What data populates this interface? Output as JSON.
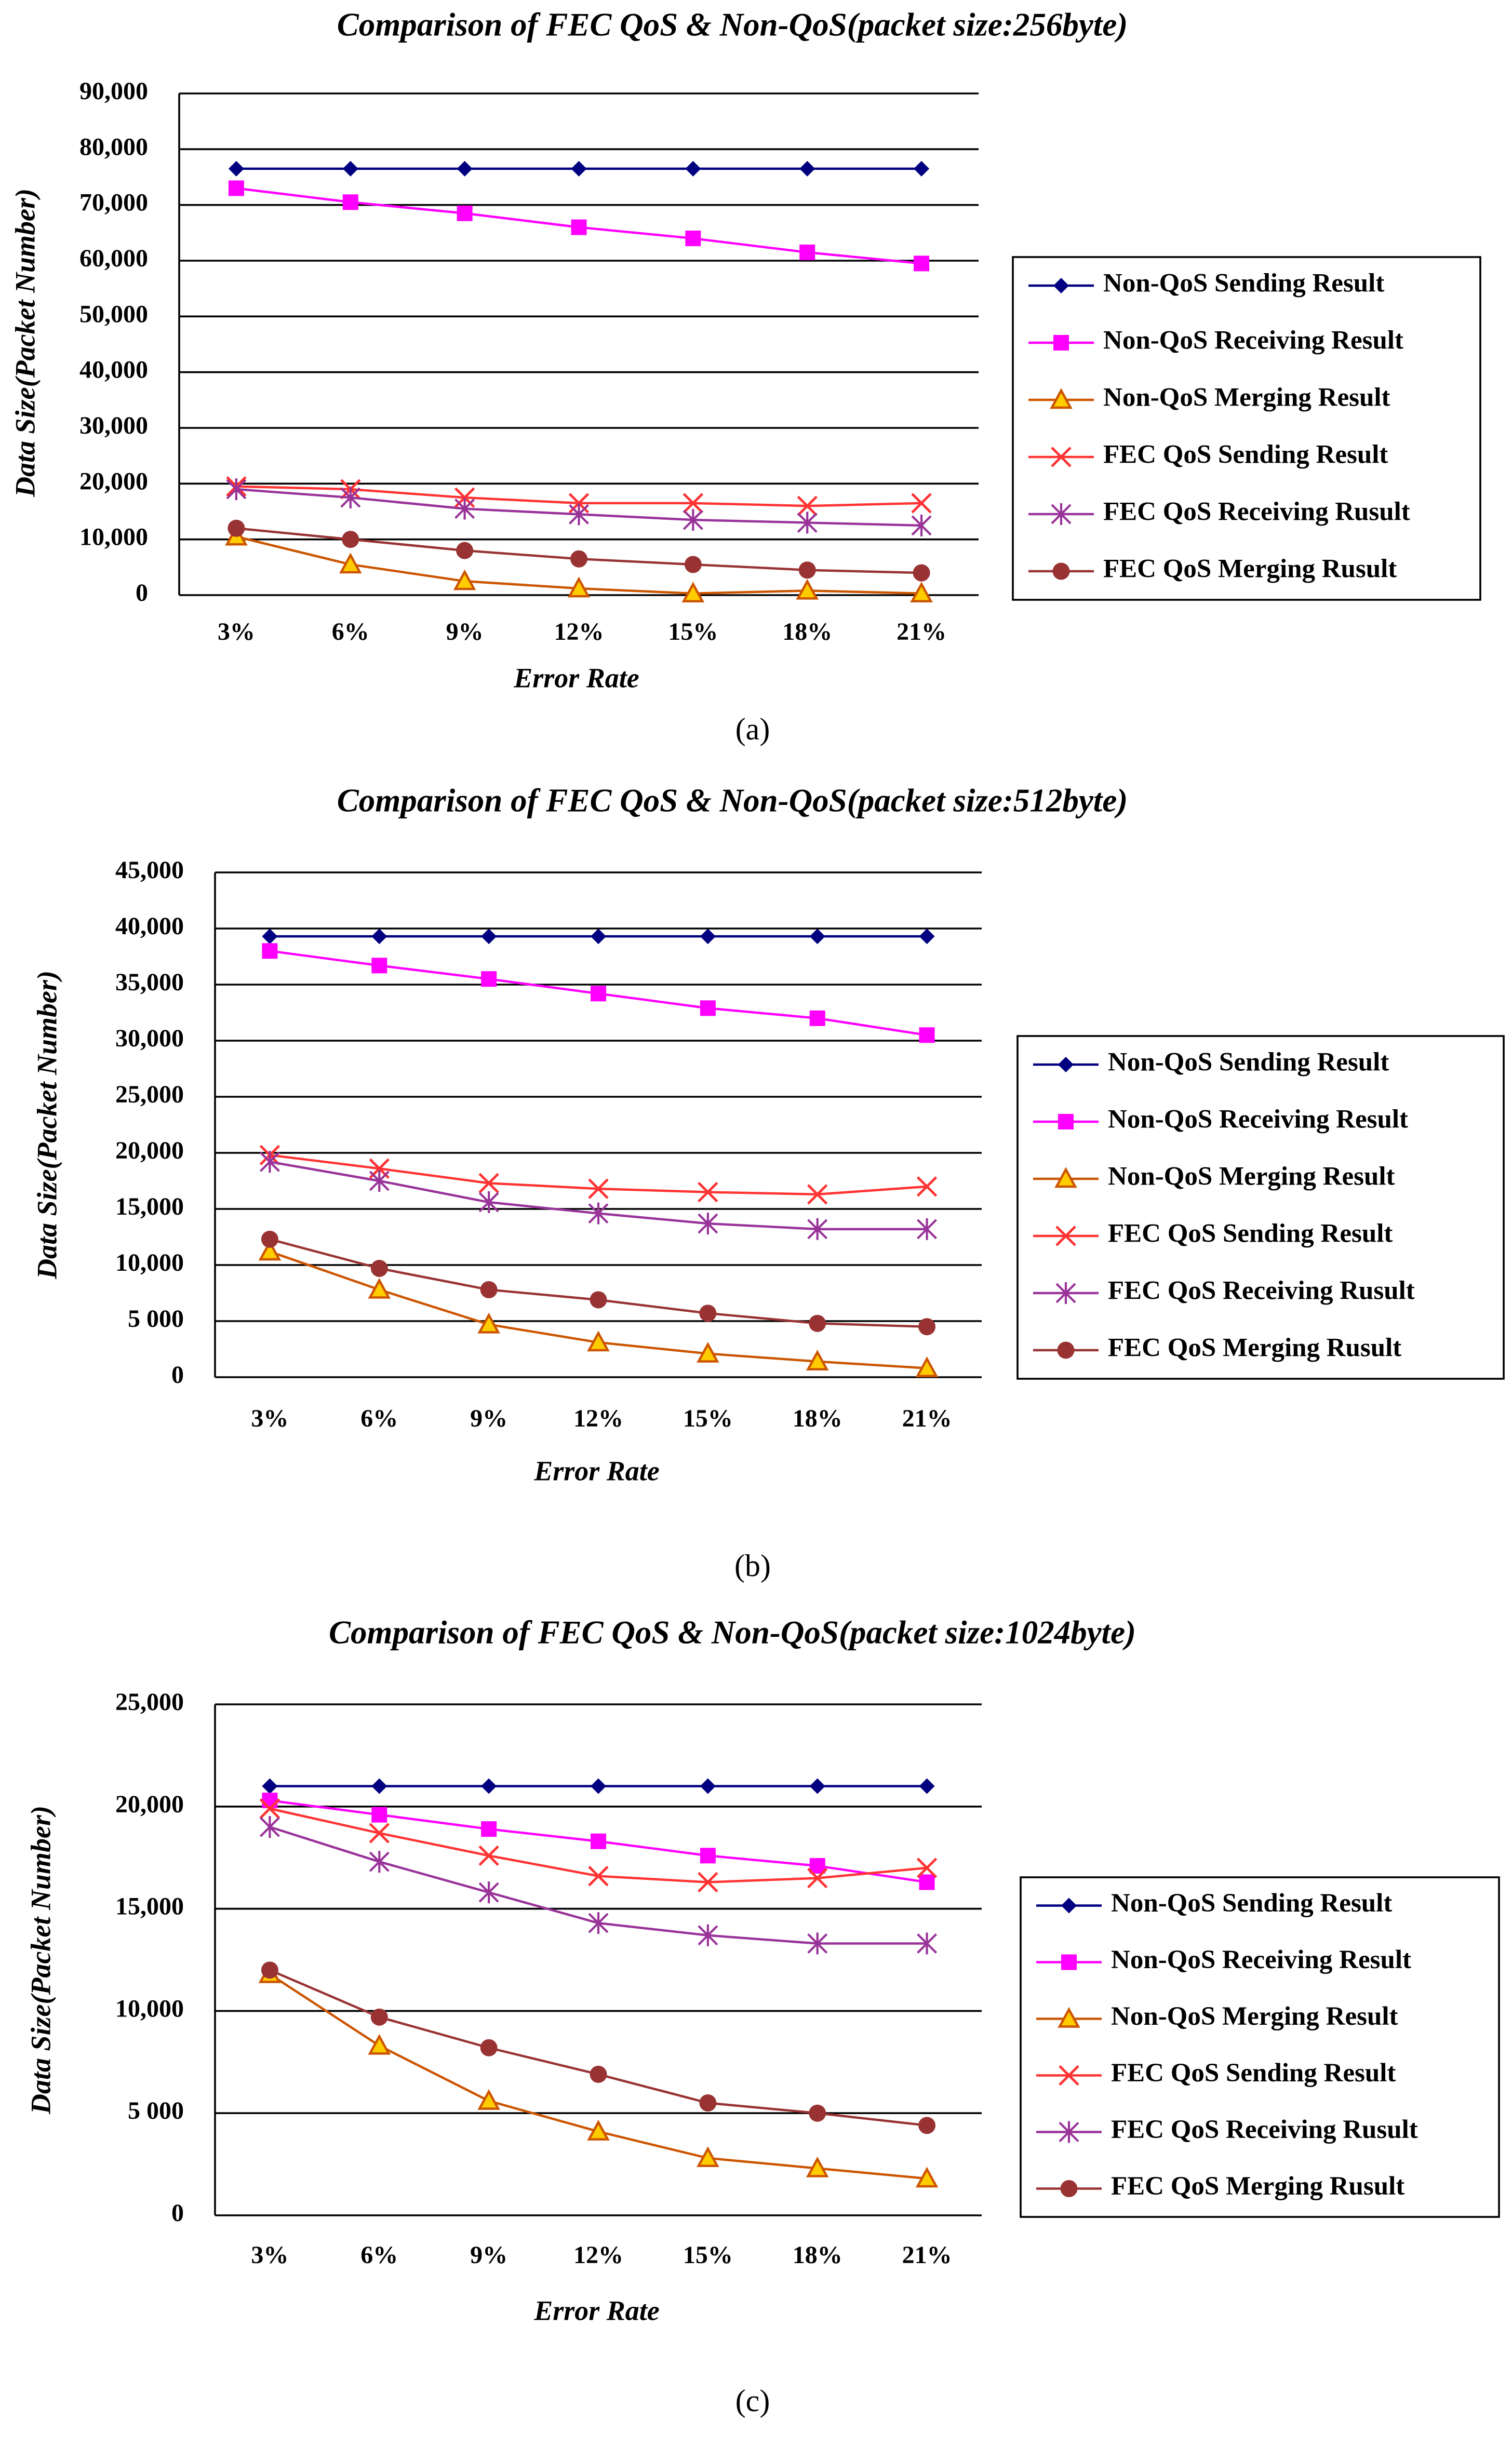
{
  "chart_data": [
    {
      "type": "line",
      "title": "Comparison of FEC QoS & Non-QoS(packet size:256byte)",
      "xlabel": "Error Rate",
      "ylabel": "Data Size(Packet Number)",
      "caption": "(a)",
      "categories": [
        "3%",
        "6%",
        "9%",
        "12%",
        "15%",
        "18%",
        "21%"
      ],
      "ylim": [
        0,
        90000
      ],
      "yticks": [
        0,
        {
          "value": 10000,
          "label": "10,000"
        },
        {
          "value": 20000,
          "label": "20,000"
        },
        {
          "value": 30000,
          "label": "30,000"
        },
        {
          "value": 40000,
          "label": "40,000"
        },
        {
          "value": 50000,
          "label": "50,000"
        },
        {
          "value": 60000,
          "label": "60,000"
        },
        {
          "value": 70000,
          "label": "70,000"
        },
        {
          "value": 80000,
          "label": "80,000"
        },
        {
          "value": 90000,
          "label": "90,000"
        }
      ],
      "grid": true,
      "legend": "right",
      "series": [
        {
          "name": "Non-QoS Sending Result",
          "color": "#000080",
          "marker": "diamond",
          "values": [
            76500,
            76500,
            76500,
            76500,
            76500,
            76500,
            76500
          ]
        },
        {
          "name": "Non-QoS Receiving Result",
          "color": "#ff00ff",
          "marker": "square",
          "values": [
            73000,
            70500,
            68500,
            66000,
            64000,
            61500,
            59500
          ]
        },
        {
          "name": "Non-QoS Merging Result",
          "color": "#cc5500",
          "marker": "triangle",
          "values": [
            10500,
            5500,
            2500,
            1200,
            300,
            800,
            300
          ]
        },
        {
          "name": "FEC QoS Sending Result",
          "color": "#ff3333",
          "marker": "x",
          "values": [
            19500,
            19000,
            17500,
            16500,
            16500,
            16000,
            16500
          ]
        },
        {
          "name": "FEC QoS Receiving Rusult",
          "color": "#993399",
          "marker": "star",
          "values": [
            19000,
            17500,
            15500,
            14500,
            13500,
            13000,
            12500
          ]
        },
        {
          "name": "FEC QoS Merging Rusult",
          "color": "#993333",
          "marker": "circle",
          "values": [
            12000,
            10000,
            8000,
            6500,
            5500,
            4500,
            4000
          ]
        }
      ]
    },
    {
      "type": "line",
      "title": "Comparison of FEC QoS & Non-QoS(packet size:512byte)",
      "xlabel": "Error Rate",
      "ylabel": "Data Size(Packet Number)",
      "caption": "(b)",
      "categories": [
        "3%",
        "6%",
        "9%",
        "12%",
        "15%",
        "18%",
        "21%"
      ],
      "ylim": [
        0,
        45000
      ],
      "yticks": [
        0,
        {
          "value": 5000,
          "label": "5 000"
        },
        {
          "value": 10000,
          "label": "10,000"
        },
        {
          "value": 15000,
          "label": "15,000"
        },
        {
          "value": 20000,
          "label": "20,000"
        },
        {
          "value": 25000,
          "label": "25,000"
        },
        {
          "value": 30000,
          "label": "30,000"
        },
        {
          "value": 35000,
          "label": "35,000"
        },
        {
          "value": 40000,
          "label": "40,000"
        },
        {
          "value": 45000,
          "label": "45,000"
        }
      ],
      "grid": true,
      "legend": "right",
      "series": [
        {
          "name": "Non-QoS Sending Result",
          "color": "#000080",
          "marker": "diamond",
          "values": [
            39300,
            39300,
            39300,
            39300,
            39300,
            39300,
            39300
          ]
        },
        {
          "name": "Non-QoS Receiving Result",
          "color": "#ff00ff",
          "marker": "square",
          "values": [
            38000,
            36700,
            35500,
            34200,
            32900,
            32000,
            30500
          ]
        },
        {
          "name": "Non-QoS Merging Result",
          "color": "#cc5500",
          "marker": "triangle",
          "values": [
            11200,
            7800,
            4700,
            3100,
            2100,
            1400,
            800
          ]
        },
        {
          "name": "FEC QoS Sending Result",
          "color": "#ff3333",
          "marker": "x",
          "values": [
            19800,
            18600,
            17300,
            16800,
            16500,
            16300,
            17000
          ]
        },
        {
          "name": "FEC QoS Receiving Rusult",
          "color": "#993399",
          "marker": "star",
          "values": [
            19200,
            17500,
            15600,
            14600,
            13700,
            13200,
            13200
          ]
        },
        {
          "name": "FEC QoS Merging Rusult",
          "color": "#993333",
          "marker": "circle",
          "values": [
            12300,
            9700,
            7800,
            6900,
            5700,
            4800,
            4500
          ]
        }
      ]
    },
    {
      "type": "line",
      "title": "Comparison of FEC QoS & Non-QoS(packet size:1024byte)",
      "xlabel": "Error Rate",
      "ylabel": "Data Size(Packet Number)",
      "caption": "(c)",
      "categories": [
        "3%",
        "6%",
        "9%",
        "12%",
        "15%",
        "18%",
        "21%"
      ],
      "ylim": [
        0,
        25000
      ],
      "yticks": [
        0,
        {
          "value": 5000,
          "label": "5 000"
        },
        {
          "value": 10000,
          "label": "10,000"
        },
        {
          "value": 15000,
          "label": "15,000"
        },
        {
          "value": 20000,
          "label": "20,000"
        },
        {
          "value": 25000,
          "label": "25,000"
        }
      ],
      "grid": true,
      "legend": "right",
      "series": [
        {
          "name": "Non-QoS Sending Result",
          "color": "#000080",
          "marker": "diamond",
          "values": [
            21000,
            21000,
            21000,
            21000,
            21000,
            21000,
            21000
          ]
        },
        {
          "name": "Non-QoS Receiving Result",
          "color": "#ff00ff",
          "marker": "square",
          "values": [
            20300,
            19600,
            18900,
            18300,
            17600,
            17100,
            16300
          ]
        },
        {
          "name": "Non-QoS Merging Result",
          "color": "#cc5500",
          "marker": "triangle",
          "values": [
            11800,
            8300,
            5600,
            4100,
            2800,
            2300,
            1800
          ]
        },
        {
          "name": "FEC QoS Sending Result",
          "color": "#ff3333",
          "marker": "x",
          "values": [
            19900,
            18700,
            17600,
            16600,
            16300,
            16500,
            17000
          ]
        },
        {
          "name": "FEC QoS Receiving Rusult",
          "color": "#993399",
          "marker": "star",
          "values": [
            19000,
            17300,
            15800,
            14300,
            13700,
            13300,
            13300
          ]
        },
        {
          "name": "FEC QoS Merging Rusult",
          "color": "#993333",
          "marker": "circle",
          "values": [
            12000,
            9700,
            8200,
            6900,
            5500,
            5000,
            4400
          ]
        }
      ]
    }
  ]
}
